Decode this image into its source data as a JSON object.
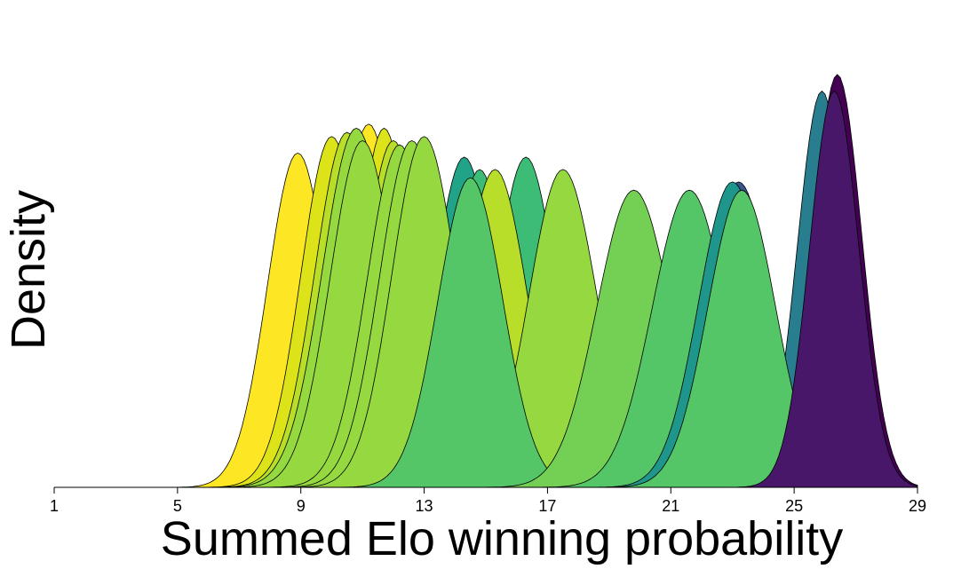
{
  "chart_data": {
    "type": "area",
    "title": "",
    "xlabel": "Summed Elo winning probability",
    "ylabel": "Density",
    "xlim": [
      1,
      29
    ],
    "ylim": [
      0,
      1.1
    ],
    "x_ticks": [
      1,
      5,
      9,
      13,
      17,
      21,
      25,
      29
    ],
    "grid": false,
    "legend": "none",
    "curve_style": "filled density ridges, black outline",
    "series": [
      {
        "mean": 8.9,
        "sd": 0.98,
        "peak": 0.81,
        "color": "#FDE725"
      },
      {
        "mean": 10.0,
        "sd": 1.0,
        "peak": 0.85,
        "color": "#DCE319"
      },
      {
        "mean": 10.5,
        "sd": 1.05,
        "peak": 0.86,
        "color": "#B8DE29"
      },
      {
        "mean": 11.2,
        "sd": 1.0,
        "peak": 0.88,
        "color": "#FDE725"
      },
      {
        "mean": 11.7,
        "sd": 0.9,
        "peak": 0.87,
        "color": "#DCE319"
      },
      {
        "mean": 12.0,
        "sd": 1.0,
        "peak": 0.84,
        "color": "#B8DE29"
      },
      {
        "mean": 14.3,
        "sd": 1.0,
        "peak": 0.8,
        "color": "#20A386"
      },
      {
        "mean": 14.8,
        "sd": 0.95,
        "peak": 0.77,
        "color": "#3CBC75"
      },
      {
        "mean": 16.3,
        "sd": 1.0,
        "peak": 0.8,
        "color": "#3CBC75"
      },
      {
        "mean": 23.2,
        "sd": 1.1,
        "peak": 0.74,
        "color": "#39568C"
      },
      {
        "mean": 25.9,
        "sd": 0.8,
        "peak": 0.96,
        "color": "#287D8E"
      },
      {
        "mean": 10.8,
        "sd": 1.1,
        "peak": 0.87,
        "color": "#95D840"
      },
      {
        "mean": 11.0,
        "sd": 1.05,
        "peak": 0.84,
        "color": "#95D840"
      },
      {
        "mean": 12.2,
        "sd": 1.05,
        "peak": 0.83,
        "color": "#95D840"
      },
      {
        "mean": 12.6,
        "sd": 1.05,
        "peak": 0.84,
        "color": "#95D840"
      },
      {
        "mean": 13.0,
        "sd": 1.05,
        "peak": 0.85,
        "color": "#95D840"
      },
      {
        "mean": 15.3,
        "sd": 1.05,
        "peak": 0.77,
        "color": "#B8DE29"
      },
      {
        "mean": 17.5,
        "sd": 1.1,
        "peak": 0.77,
        "color": "#95D840"
      },
      {
        "mean": 14.5,
        "sd": 1.05,
        "peak": 0.75,
        "color": "#55C667"
      },
      {
        "mean": 19.8,
        "sd": 1.2,
        "peak": 0.72,
        "color": "#73D055"
      },
      {
        "mean": 21.6,
        "sd": 1.2,
        "peak": 0.72,
        "color": "#55C667"
      },
      {
        "mean": 23.0,
        "sd": 1.1,
        "peak": 0.74,
        "color": "#1F968B"
      },
      {
        "mean": 23.3,
        "sd": 1.1,
        "peak": 0.72,
        "color": "#55C667"
      },
      {
        "mean": 26.4,
        "sd": 0.8,
        "peak": 1.0,
        "color": "#440154"
      },
      {
        "mean": 26.3,
        "sd": 0.8,
        "peak": 0.96,
        "color": "#481769"
      }
    ]
  }
}
